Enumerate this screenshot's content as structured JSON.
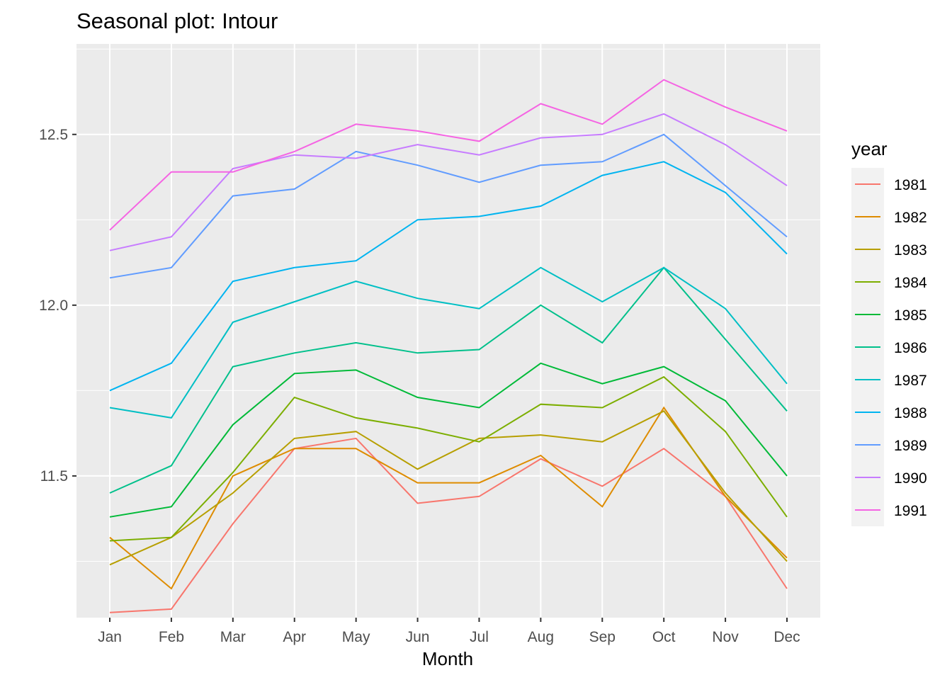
{
  "chart_data": {
    "type": "line",
    "title": "Seasonal plot: Intour",
    "xlabel": "Month",
    "ylabel": "",
    "categories": [
      "Jan",
      "Feb",
      "Mar",
      "Apr",
      "May",
      "Jun",
      "Jul",
      "Aug",
      "Sep",
      "Oct",
      "Nov",
      "Dec"
    ],
    "ylim": [
      11.085,
      12.765
    ],
    "y_ticks": [
      "11.5",
      "12.0",
      "12.5"
    ],
    "y_tick_values": [
      11.5,
      12.0,
      12.5
    ],
    "grid": true,
    "legend": {
      "title": "year",
      "position": "right"
    },
    "series": [
      {
        "name": "1981",
        "color": "#F8766D",
        "values": [
          11.1,
          11.11,
          11.36,
          11.58,
          11.61,
          11.42,
          11.44,
          11.55,
          11.47,
          11.58,
          11.44,
          11.17
        ]
      },
      {
        "name": "1982",
        "color": "#DE8C00",
        "values": [
          11.32,
          11.17,
          11.5,
          11.58,
          11.58,
          11.48,
          11.48,
          11.56,
          11.41,
          11.7,
          11.44,
          11.26
        ]
      },
      {
        "name": "1983",
        "color": "#B79F00",
        "values": [
          11.24,
          11.32,
          11.45,
          11.61,
          11.63,
          11.52,
          11.61,
          11.62,
          11.6,
          11.69,
          11.45,
          11.25
        ]
      },
      {
        "name": "1984",
        "color": "#7CAE00",
        "values": [
          11.31,
          11.32,
          11.51,
          11.73,
          11.67,
          11.64,
          11.6,
          11.71,
          11.7,
          11.79,
          11.63,
          11.38
        ]
      },
      {
        "name": "1985",
        "color": "#00BA38",
        "values": [
          11.38,
          11.41,
          11.65,
          11.8,
          11.81,
          11.73,
          11.7,
          11.83,
          11.77,
          11.82,
          11.72,
          11.5
        ]
      },
      {
        "name": "1986",
        "color": "#00C08B",
        "values": [
          11.45,
          11.53,
          11.82,
          11.86,
          11.89,
          11.86,
          11.87,
          12.0,
          11.89,
          12.11,
          11.9,
          11.69
        ]
      },
      {
        "name": "1987",
        "color": "#00BFC4",
        "values": [
          11.7,
          11.67,
          11.95,
          12.01,
          12.07,
          12.02,
          11.99,
          12.11,
          12.01,
          12.11,
          11.99,
          11.77
        ]
      },
      {
        "name": "1988",
        "color": "#00B4F0",
        "values": [
          11.75,
          11.83,
          12.07,
          12.11,
          12.13,
          12.25,
          12.26,
          12.29,
          12.38,
          12.42,
          12.33,
          12.15
        ]
      },
      {
        "name": "1989",
        "color": "#619CFF",
        "values": [
          12.08,
          12.11,
          12.32,
          12.34,
          12.45,
          12.41,
          12.36,
          12.41,
          12.42,
          12.5,
          12.35,
          12.2
        ]
      },
      {
        "name": "1990",
        "color": "#C77CFF",
        "values": [
          12.16,
          12.2,
          12.4,
          12.44,
          12.43,
          12.47,
          12.44,
          12.49,
          12.5,
          12.56,
          12.47,
          12.35
        ]
      },
      {
        "name": "1991",
        "color": "#F564E3",
        "values": [
          12.22,
          12.39,
          12.39,
          12.45,
          12.53,
          12.51,
          12.48,
          12.59,
          12.53,
          12.66,
          12.58,
          12.51
        ]
      }
    ]
  }
}
